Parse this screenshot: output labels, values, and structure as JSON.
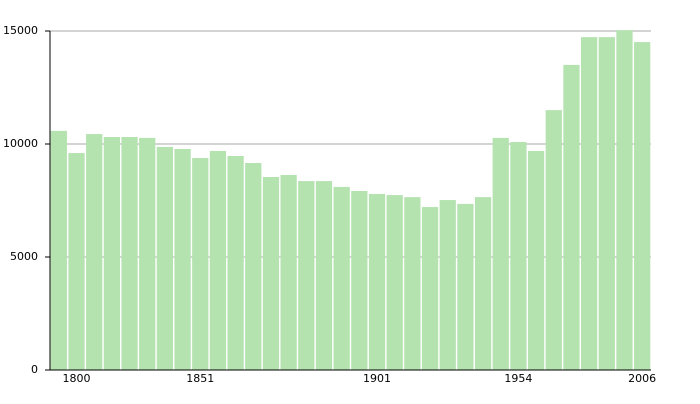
{
  "chart_data": {
    "type": "bar",
    "categories": [
      null,
      "1800",
      null,
      null,
      null,
      null,
      null,
      null,
      "1851",
      null,
      null,
      null,
      null,
      null,
      null,
      null,
      null,
      null,
      "1901",
      null,
      null,
      null,
      null,
      null,
      null,
      null,
      "1954",
      null,
      null,
      null,
      null,
      null,
      null,
      "2006"
    ],
    "values": [
      10580,
      9600,
      10440,
      10310,
      10310,
      10270,
      9870,
      9780,
      9380,
      9690,
      9470,
      9160,
      8540,
      8630,
      8360,
      8360,
      8100,
      7920,
      7790,
      7740,
      7650,
      7210,
      7520,
      7350,
      7650,
      10270,
      10090,
      9690,
      11500,
      13500,
      14730,
      14730,
      15040,
      14510
    ],
    "color": "#b5e3b0",
    "ylim": [
      0,
      15000
    ],
    "yticks": [
      0,
      5000,
      10000,
      15000
    ],
    "grid": true
  }
}
